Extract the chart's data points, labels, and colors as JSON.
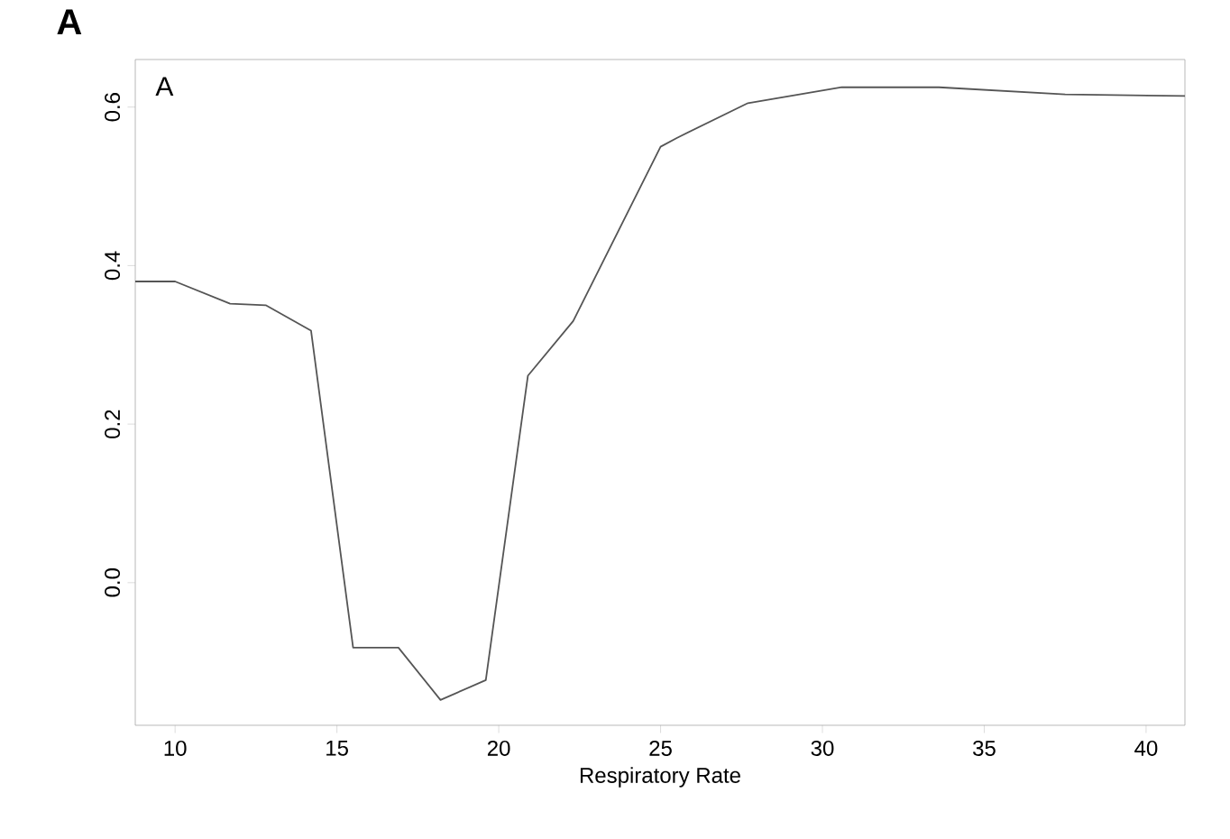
{
  "chart_data": {
    "type": "line",
    "xlabel": "Respiratory Rate",
    "annotations": [
      "A",
      "A"
    ],
    "x": [
      8.77,
      10,
      11.7,
      12.8,
      14.2,
      15.5,
      16.9,
      18.2,
      19.6,
      20.9,
      22.3,
      25.0,
      25.5,
      27.7,
      30.6,
      33.6,
      37.5,
      41.2
    ],
    "values": [
      0.38,
      0.38,
      0.352,
      0.35,
      0.318,
      -0.082,
      -0.082,
      -0.148,
      -0.123,
      0.261,
      0.33,
      0.55,
      0.561,
      0.605,
      0.625,
      0.625,
      0.616,
      0.614
    ],
    "color": "#555555",
    "xlim": [
      8.77,
      41.2
    ],
    "ylim": [
      -0.18,
      0.66
    ],
    "xticks": [
      10,
      15,
      20,
      25,
      30,
      35,
      40
    ],
    "yticks": [
      {
        "value": 0.0,
        "label": "0.0"
      },
      {
        "value": 0.2,
        "label": "0.2"
      },
      {
        "value": 0.4,
        "label": "0.4"
      },
      {
        "value": 0.6,
        "label": "0.6"
      }
    ],
    "grid": false,
    "marker": "none",
    "line_style": "solid"
  }
}
